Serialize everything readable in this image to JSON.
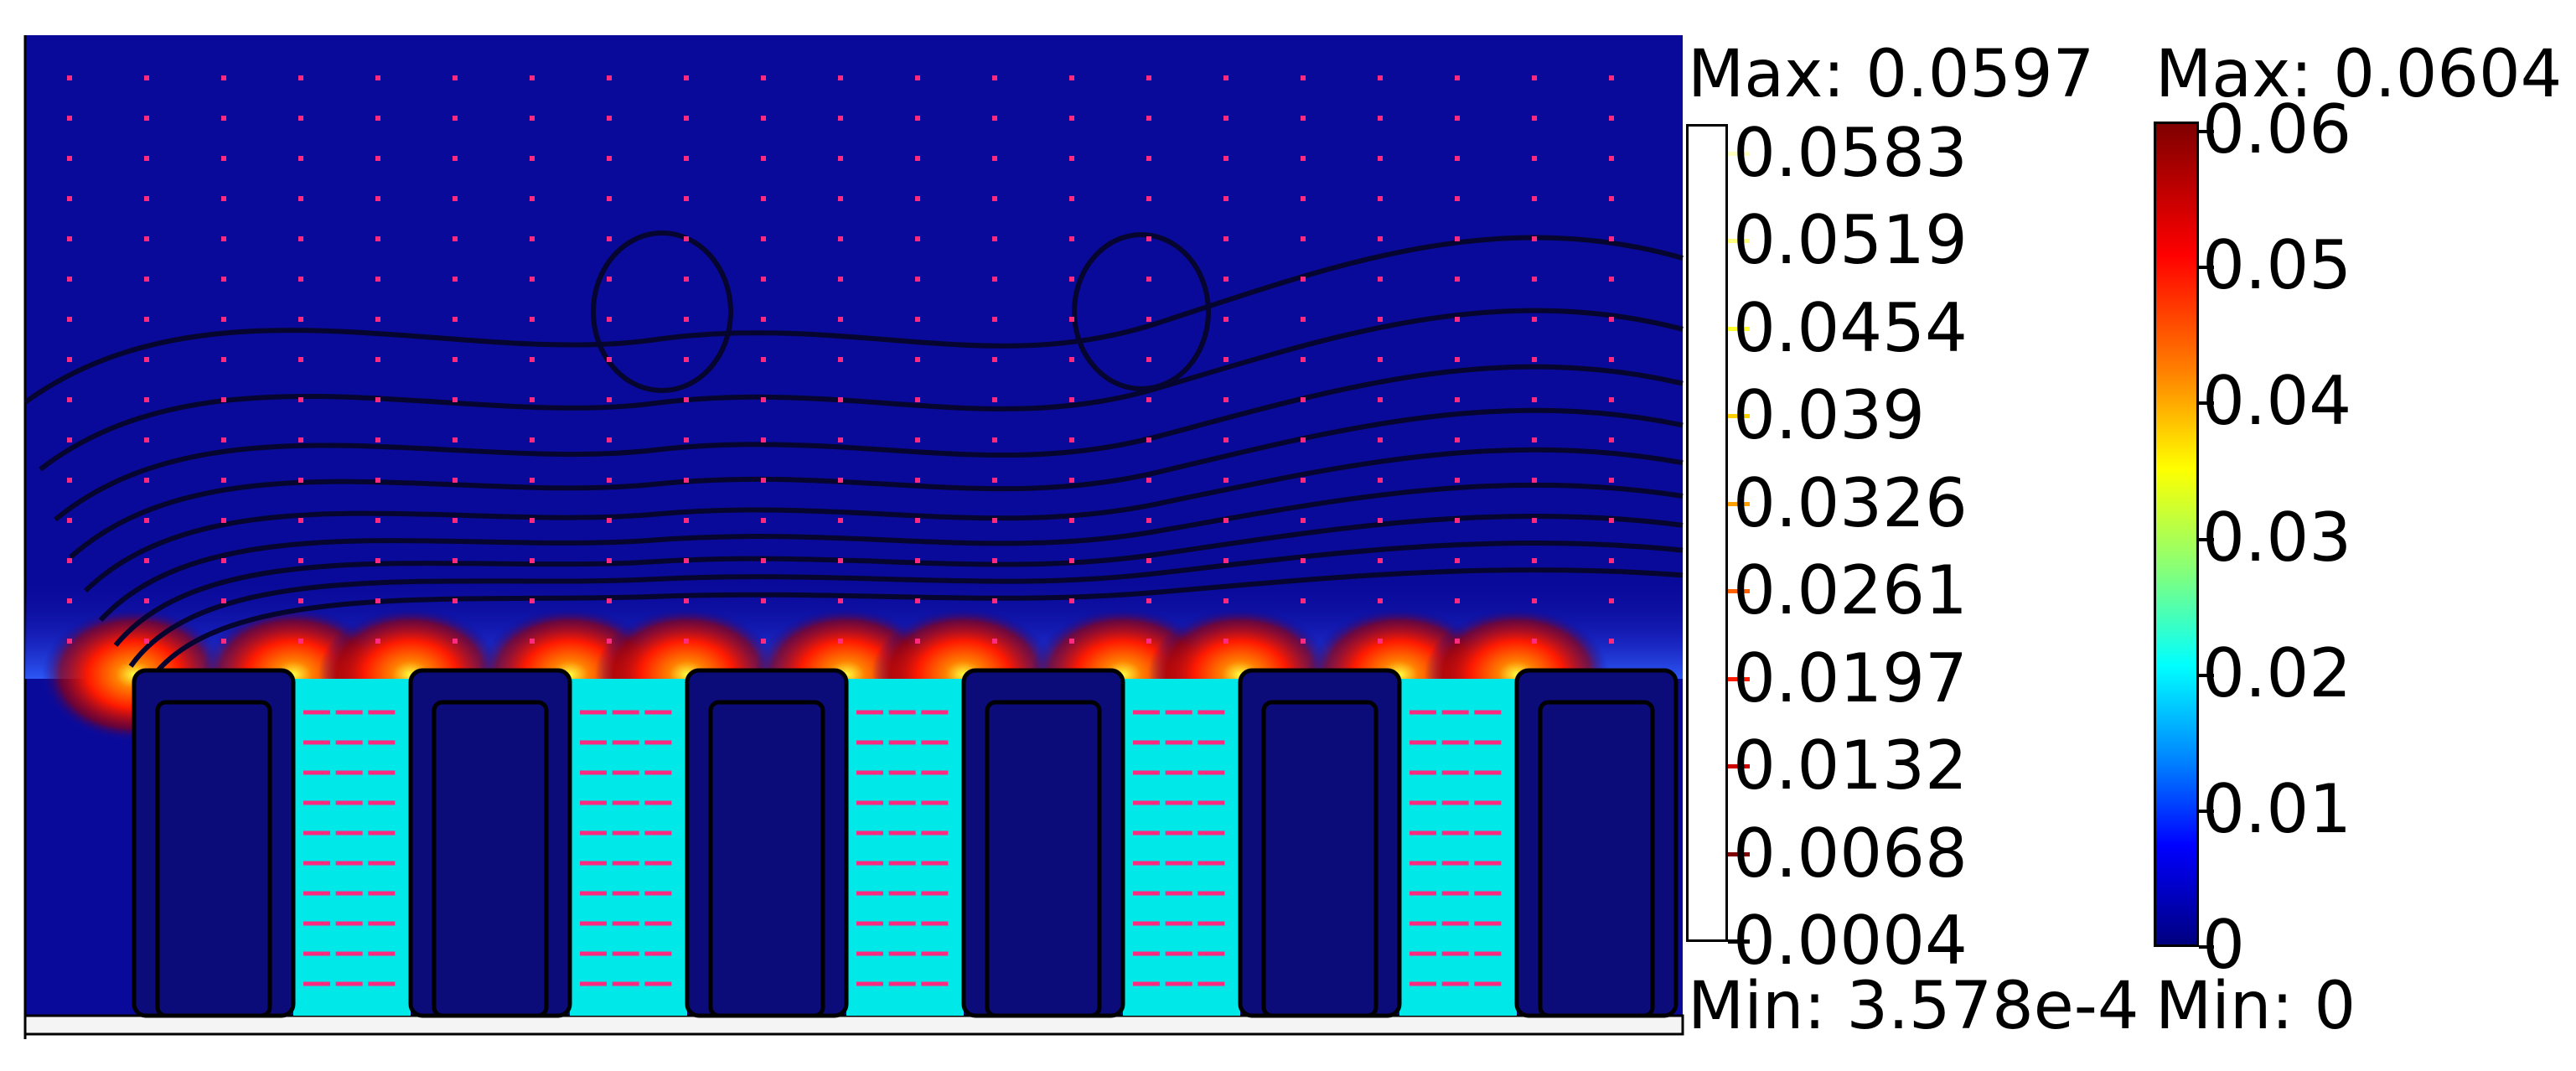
{
  "field_plot": {
    "description_name": "electrostatic-field-surface-with-arrows-and-contours",
    "colors": {
      "background": "#0a0a9a",
      "electrode": "#0b0b7a",
      "gap": "#00e8e8",
      "arrow": "#ff2a80",
      "contour": "#050530"
    }
  },
  "contour_legend": {
    "max_label": "Max: 0.0597",
    "min_label": "Min: 3.578e-4",
    "levels": [
      {
        "label": "0.0583",
        "color": "#ffffc0"
      },
      {
        "label": "0.0519",
        "color": "#ffff80"
      },
      {
        "label": "0.0454",
        "color": "#ffff30"
      },
      {
        "label": "0.039",
        "color": "#ffd000"
      },
      {
        "label": "0.0326",
        "color": "#ffa000"
      },
      {
        "label": "0.0261",
        "color": "#ff6000"
      },
      {
        "label": "0.0197",
        "color": "#ff1a00"
      },
      {
        "label": "0.0132",
        "color": "#d00000"
      },
      {
        "label": "0.0068",
        "color": "#800000"
      },
      {
        "label": "0.0004",
        "color": "#000000"
      }
    ]
  },
  "color_legend": {
    "max_label": "Max: 0.0604",
    "min_label": "Min: 0",
    "ticks": [
      "0.06",
      "0.05",
      "0.04",
      "0.03",
      "0.02",
      "0.01",
      "0"
    ]
  }
}
